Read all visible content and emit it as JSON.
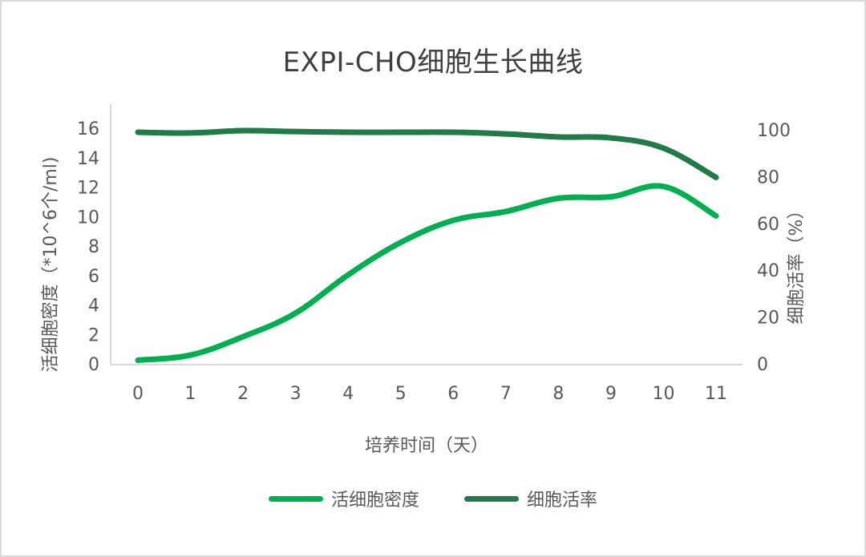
{
  "chart_data": {
    "type": "line",
    "title": "EXPI-CHO细胞生长曲线",
    "xlabel": "培养时间（天）",
    "ylabel": "活细胞密度（*10^6个/ml)",
    "ylabel_right": "细胞活率（%）",
    "categories": [
      0,
      1,
      2,
      3,
      4,
      5,
      6,
      7,
      8,
      9,
      10,
      11
    ],
    "x_tick_labels": [
      "0",
      "1",
      "2",
      "3",
      "4",
      "5",
      "6",
      "7",
      "8",
      "9",
      "10",
      "11"
    ],
    "ylim": [
      0,
      16
    ],
    "y_ticks": [
      "0",
      "2",
      "4",
      "6",
      "8",
      "10",
      "12",
      "14",
      "16"
    ],
    "ylim_right": [
      0,
      100
    ],
    "y_ticks_right": [
      "0",
      "20",
      "40",
      "60",
      "80",
      "100"
    ],
    "grid": false,
    "legend_position": "bottom",
    "series": [
      {
        "name": "活细胞密度",
        "axis": "left",
        "color": "#00B050",
        "values": [
          0.3,
          0.65,
          1.9,
          3.5,
          6.1,
          8.3,
          9.8,
          10.4,
          11.3,
          11.4,
          12.1,
          10.1
        ]
      },
      {
        "name": "细胞活率",
        "axis": "right",
        "color": "#217A47",
        "values": [
          99.3,
          99.0,
          100.0,
          99.6,
          99.3,
          99.3,
          99.3,
          98.6,
          97.3,
          96.9,
          92.5,
          80.0
        ]
      }
    ]
  }
}
